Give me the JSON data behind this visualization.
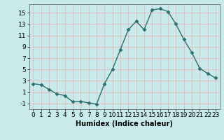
{
  "x": [
    0,
    1,
    2,
    3,
    4,
    5,
    6,
    7,
    8,
    9,
    10,
    11,
    12,
    13,
    14,
    15,
    16,
    17,
    18,
    19,
    20,
    21,
    22,
    23
  ],
  "y": [
    2.5,
    2.3,
    1.5,
    0.7,
    0.4,
    -0.7,
    -0.6,
    -0.9,
    -1.1,
    2.5,
    5.0,
    8.5,
    12.0,
    13.5,
    12.0,
    15.5,
    15.7,
    15.2,
    13.0,
    10.3,
    8.0,
    5.2,
    4.3,
    3.5
  ],
  "line_color": "#2d6e6e",
  "marker": "D",
  "markersize": 2.5,
  "linewidth": 1.0,
  "bg_color": "#c8eaea",
  "grid_color": "#e8b8b8",
  "xlabel": "Humidex (Indice chaleur)",
  "ylim": [
    -2,
    16.5
  ],
  "xlim": [
    -0.5,
    23.5
  ],
  "yticks": [
    -1,
    1,
    3,
    5,
    7,
    9,
    11,
    13,
    15
  ],
  "xtick_labels": [
    "0",
    "1",
    "2",
    "3",
    "4",
    "5",
    "6",
    "7",
    "8",
    "9",
    "10",
    "11",
    "12",
    "13",
    "14",
    "15",
    "16",
    "17",
    "18",
    "19",
    "20",
    "21",
    "22",
    "23"
  ],
  "xlabel_fontsize": 7,
  "tick_fontsize": 6.5
}
